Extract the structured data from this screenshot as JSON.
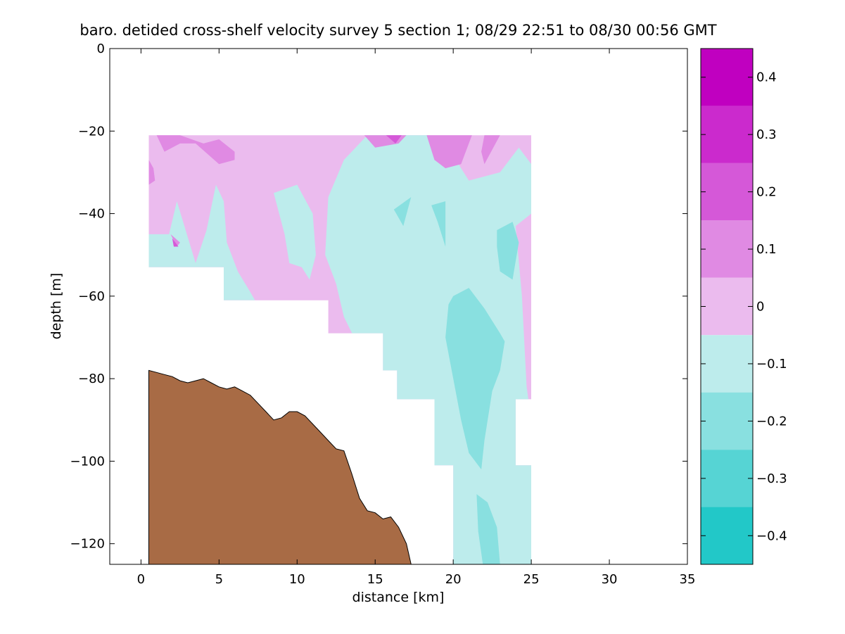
{
  "chart_data": {
    "type": "contour",
    "title": "baro. detided cross-shelf velocity survey 5 section 1; 08/29 22:51 to 08/30 00:56 GMT",
    "xlabel": "distance [km]",
    "ylabel": "depth [m]",
    "xlim": [
      -2,
      35
    ],
    "ylim": [
      -125,
      0
    ],
    "xticks": [
      0,
      5,
      10,
      15,
      20,
      25,
      30,
      35
    ],
    "yticks": [
      0,
      -20,
      -40,
      -60,
      -80,
      -100,
      -120
    ],
    "colorbar": {
      "range": [
        -0.45,
        0.45
      ],
      "ticks": [
        0.4,
        0.3,
        0.2,
        0.1,
        0,
        -0.1,
        -0.2,
        -0.3,
        -0.4
      ],
      "levels": [
        {
          "from": 0.35,
          "to": 0.45,
          "color": "#c000c0"
        },
        {
          "from": 0.25,
          "to": 0.35,
          "color": "#cb2acd"
        },
        {
          "from": 0.15,
          "to": 0.25,
          "color": "#d558d8"
        },
        {
          "from": 0.05,
          "to": 0.15,
          "color": "#e08ae3"
        },
        {
          "from": -0.05,
          "to": 0.05,
          "color": "#ebbbee"
        },
        {
          "from": -0.15,
          "to": -0.05,
          "color": "#bdecec"
        },
        {
          "from": -0.25,
          "to": -0.15,
          "color": "#89e0e0"
        },
        {
          "from": -0.35,
          "to": -0.25,
          "color": "#56d4d4"
        },
        {
          "from": -0.45,
          "to": -0.35,
          "color": "#22c8c8"
        },
        {
          "from": -0.55,
          "to": -0.45,
          "color": "#00bcbc"
        }
      ]
    },
    "bathymetry": {
      "color": "#a86b45",
      "points": [
        [
          0.5,
          -78
        ],
        [
          1.0,
          -78.5
        ],
        [
          1.5,
          -79
        ],
        [
          2.0,
          -79.5
        ],
        [
          2.5,
          -80.5
        ],
        [
          3.0,
          -81
        ],
        [
          3.5,
          -80.5
        ],
        [
          4.0,
          -80
        ],
        [
          4.5,
          -81
        ],
        [
          5.0,
          -82
        ],
        [
          5.5,
          -82.5
        ],
        [
          6.0,
          -82
        ],
        [
          6.5,
          -83
        ],
        [
          7.0,
          -84
        ],
        [
          7.5,
          -86
        ],
        [
          8.0,
          -88
        ],
        [
          8.5,
          -90
        ],
        [
          9.0,
          -89.5
        ],
        [
          9.5,
          -88
        ],
        [
          10.0,
          -88
        ],
        [
          10.5,
          -89
        ],
        [
          11.0,
          -91
        ],
        [
          11.5,
          -93
        ],
        [
          12.0,
          -95
        ],
        [
          12.5,
          -97
        ],
        [
          13.0,
          -97.5
        ],
        [
          13.5,
          -103
        ],
        [
          14.0,
          -109
        ],
        [
          14.5,
          -112
        ],
        [
          15.0,
          -112.5
        ],
        [
          15.5,
          -114
        ],
        [
          16.0,
          -113.5
        ],
        [
          16.5,
          -116
        ],
        [
          17.0,
          -120
        ],
        [
          17.3,
          -125
        ]
      ]
    },
    "data_mask": [
      [
        0.5,
        -21
      ],
      [
        25,
        -21
      ],
      [
        25,
        -85
      ],
      [
        24,
        -85
      ],
      [
        24,
        -101
      ],
      [
        25,
        -101
      ],
      [
        25,
        -125
      ],
      [
        20,
        -125
      ],
      [
        20,
        -101
      ],
      [
        18.8,
        -101
      ],
      [
        18.8,
        -85
      ],
      [
        16.4,
        -85
      ],
      [
        16.4,
        -78
      ],
      [
        15.5,
        -78
      ],
      [
        15.5,
        -69
      ],
      [
        12,
        -69
      ],
      [
        12,
        -61
      ],
      [
        5.3,
        -61
      ],
      [
        5.3,
        -53
      ],
      [
        0.5,
        -53
      ]
    ],
    "contour_regions": [
      {
        "level": 0,
        "points": [
          [
            0.5,
            -21
          ],
          [
            25,
            -21
          ],
          [
            25,
            -125
          ],
          [
            0.5,
            -125
          ]
        ]
      },
      {
        "level": -0.1,
        "points": [
          [
            14.5,
            -21
          ],
          [
            13,
            -27
          ],
          [
            12,
            -36
          ],
          [
            11.8,
            -50
          ],
          [
            12.5,
            -57
          ],
          [
            13,
            -65
          ],
          [
            14.3,
            -75
          ],
          [
            15.2,
            -85
          ],
          [
            16.4,
            -85
          ],
          [
            16.4,
            -95
          ],
          [
            17.4,
            -103
          ],
          [
            18.6,
            -110
          ],
          [
            18.8,
            -125
          ],
          [
            20,
            -125
          ],
          [
            25,
            -125
          ],
          [
            25,
            -90
          ],
          [
            24.7,
            -82
          ],
          [
            24.4,
            -60
          ],
          [
            24,
            -43
          ],
          [
            25,
            -40
          ],
          [
            25,
            -28
          ],
          [
            24.2,
            -24
          ],
          [
            23,
            -30
          ],
          [
            21,
            -32
          ],
          [
            20,
            -26
          ],
          [
            18.5,
            -21
          ]
        ]
      },
      {
        "level": -0.1,
        "points": [
          [
            0.5,
            -45
          ],
          [
            1.8,
            -45
          ],
          [
            2.3,
            -37
          ],
          [
            3.5,
            -52
          ],
          [
            4.2,
            -44
          ],
          [
            4.8,
            -33
          ],
          [
            5.3,
            -37
          ],
          [
            5.5,
            -47
          ],
          [
            6.2,
            -54
          ],
          [
            7,
            -59
          ],
          [
            7.3,
            -61
          ],
          [
            5.3,
            -61
          ],
          [
            5.3,
            -53
          ],
          [
            0.5,
            -53
          ]
        ]
      },
      {
        "level": -0.1,
        "points": [
          [
            8.5,
            -35
          ],
          [
            10,
            -33
          ],
          [
            11,
            -40
          ],
          [
            11.2,
            -50
          ],
          [
            10.8,
            -56
          ],
          [
            10.3,
            -53
          ],
          [
            9.5,
            -52
          ],
          [
            9.2,
            -45
          ]
        ]
      },
      {
        "level": -0.2,
        "points": [
          [
            16.2,
            -39
          ],
          [
            17.3,
            -36
          ],
          [
            16.8,
            -43
          ],
          [
            16.5,
            -41
          ]
        ]
      },
      {
        "level": -0.2,
        "points": [
          [
            18.6,
            -38
          ],
          [
            19.5,
            -37
          ],
          [
            19.5,
            -48
          ],
          [
            19,
            -42
          ]
        ]
      },
      {
        "level": -0.2,
        "points": [
          [
            22.8,
            -44
          ],
          [
            23.8,
            -42
          ],
          [
            24.2,
            -47
          ],
          [
            23.8,
            -56
          ],
          [
            23,
            -54
          ],
          [
            22.8,
            -48
          ]
        ]
      },
      {
        "level": -0.2,
        "points": [
          [
            20,
            -60
          ],
          [
            21,
            -58
          ],
          [
            22,
            -63
          ],
          [
            23,
            -69
          ],
          [
            23.3,
            -71
          ],
          [
            23,
            -78
          ],
          [
            22.5,
            -83
          ],
          [
            22,
            -95
          ],
          [
            21.8,
            -102
          ],
          [
            21,
            -98
          ],
          [
            20.5,
            -90
          ],
          [
            20,
            -80
          ],
          [
            19.5,
            -70
          ],
          [
            19.7,
            -62
          ]
        ]
      },
      {
        "level": -0.2,
        "points": [
          [
            21.5,
            -108
          ],
          [
            22.2,
            -110
          ],
          [
            22.8,
            -116
          ],
          [
            23,
            -125
          ],
          [
            21.9,
            -125
          ],
          [
            21.6,
            -117
          ]
        ]
      },
      {
        "level": 0.1,
        "points": [
          [
            1,
            -21
          ],
          [
            2.5,
            -21
          ],
          [
            4,
            -23
          ],
          [
            5,
            -22
          ],
          [
            6,
            -25
          ],
          [
            6,
            -27
          ],
          [
            5,
            -28
          ],
          [
            3.5,
            -23
          ],
          [
            2.5,
            -23
          ],
          [
            1.5,
            -25
          ]
        ]
      },
      {
        "level": 0.1,
        "points": [
          [
            0.5,
            -27
          ],
          [
            0.8,
            -29
          ],
          [
            0.9,
            -32
          ],
          [
            0.5,
            -33
          ]
        ]
      },
      {
        "level": 0.1,
        "points": [
          [
            14.3,
            -21
          ],
          [
            17,
            -21
          ],
          [
            16.5,
            -23
          ],
          [
            15,
            -24
          ]
        ]
      },
      {
        "level": 0.1,
        "points": [
          [
            18.3,
            -21
          ],
          [
            21.2,
            -21
          ],
          [
            20.5,
            -28
          ],
          [
            19.5,
            -29
          ],
          [
            18.8,
            -27
          ]
        ]
      },
      {
        "level": 0.1,
        "points": [
          [
            22,
            -21
          ],
          [
            23,
            -21
          ],
          [
            22,
            -28
          ],
          [
            21.8,
            -25
          ]
        ]
      },
      {
        "level": 0.1,
        "points": [
          [
            1.9,
            -45
          ],
          [
            2.5,
            -47
          ],
          [
            2.3,
            -48
          ]
        ]
      },
      {
        "level": 0.2,
        "points": [
          [
            15.7,
            -21
          ],
          [
            16.7,
            -21
          ],
          [
            16.3,
            -23
          ]
        ]
      },
      {
        "level": 0.2,
        "points": [
          [
            2,
            -46
          ],
          [
            2.4,
            -48
          ],
          [
            2.1,
            -48
          ]
        ]
      }
    ]
  }
}
